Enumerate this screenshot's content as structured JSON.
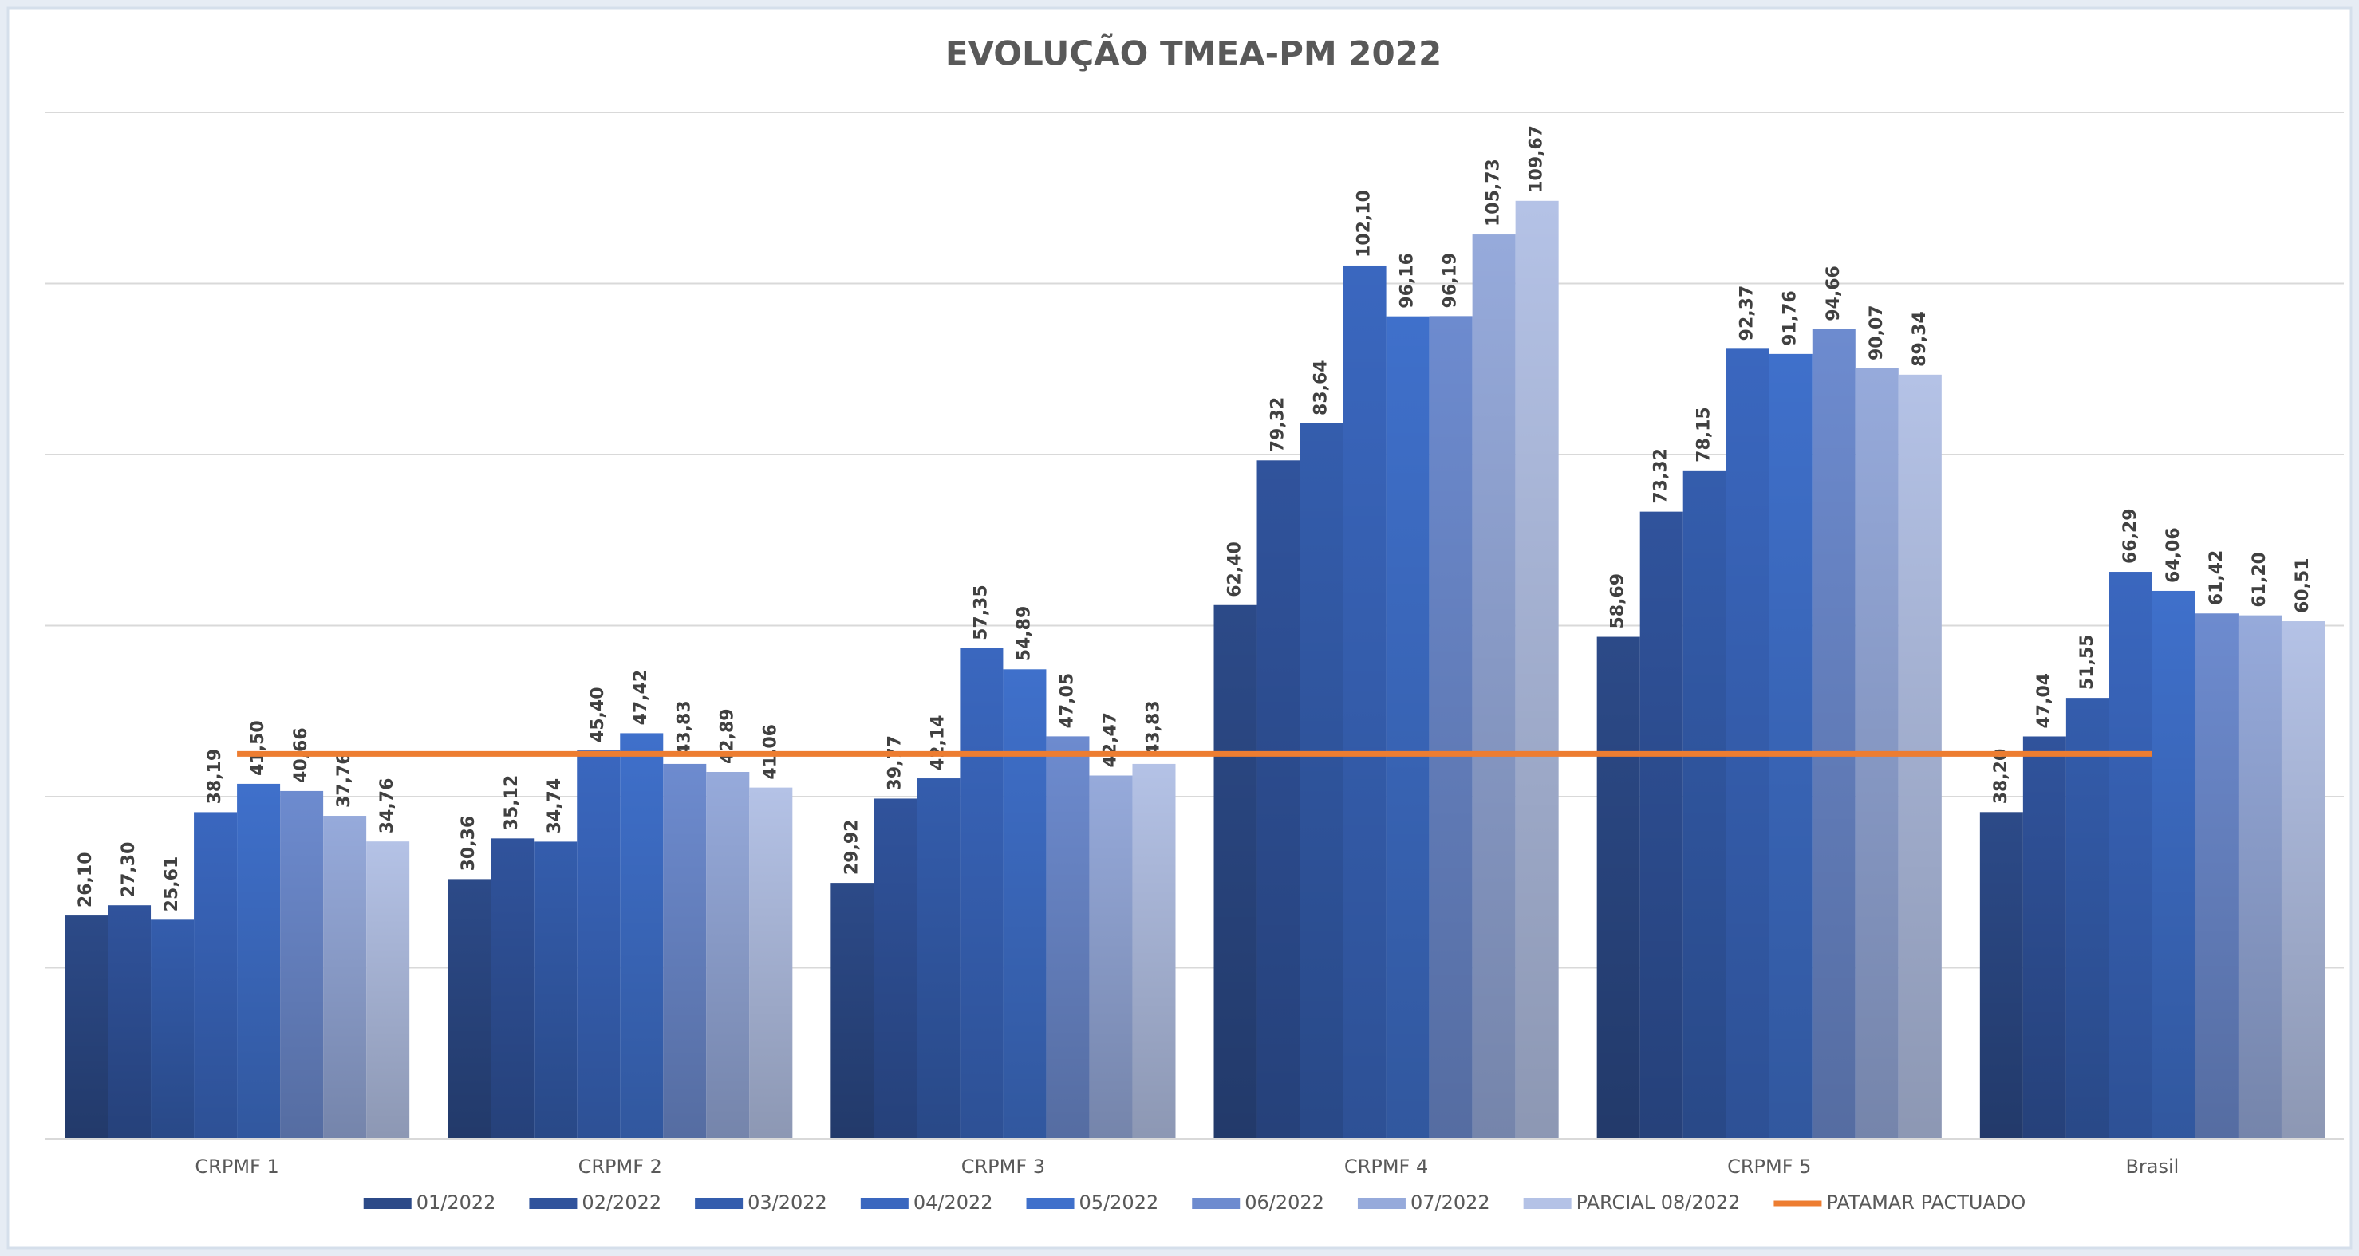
{
  "chart_data": {
    "type": "bar",
    "title": "EVOLUÇÃO TMEA-PM 2022",
    "categories": [
      "CRPMF 1",
      "CRPMF 2",
      "CRPMF 3",
      "CRPMF 4",
      "CRPMF 5",
      "Brasil"
    ],
    "ylim": [
      0,
      120
    ],
    "yticks": [
      0,
      20,
      40,
      60,
      80,
      100,
      120
    ],
    "grid": true,
    "legend": "bottom",
    "series": [
      {
        "name": "01/2022",
        "color": "#2c4a88",
        "values": [
          26.1,
          30.36,
          29.92,
          62.4,
          58.69,
          38.2
        ],
        "value_labels": [
          "26,10",
          "30,36",
          "29,92",
          "62,40",
          "58,69",
          "38,20"
        ]
      },
      {
        "name": "02/2022",
        "color": "#30539c",
        "values": [
          27.3,
          35.12,
          39.77,
          79.32,
          73.32,
          47.04
        ],
        "value_labels": [
          "27,30",
          "35,12",
          "39,77",
          "79,32",
          "73,32",
          "47,04"
        ]
      },
      {
        "name": "03/2022",
        "color": "#345dad",
        "values": [
          25.61,
          34.74,
          42.14,
          83.64,
          78.15,
          51.55
        ],
        "value_labels": [
          "25,61",
          "34,74",
          "42,14",
          "83,64",
          "78,15",
          "51,55"
        ]
      },
      {
        "name": "04/2022",
        "color": "#3a67bf",
        "values": [
          38.19,
          45.4,
          57.35,
          102.1,
          92.37,
          66.29
        ],
        "value_labels": [
          "38,19",
          "45,40",
          "57,35",
          "102,10",
          "92,37",
          "66,29"
        ]
      },
      {
        "name": "05/2022",
        "color": "#3f70cb",
        "values": [
          41.5,
          47.42,
          54.89,
          96.16,
          91.76,
          64.06
        ],
        "value_labels": [
          "41,50",
          "47,42",
          "54,89",
          "96,16",
          "91,76",
          "64,06"
        ]
      },
      {
        "name": "06/2022",
        "color": "#6d8bcf",
        "values": [
          40.66,
          43.83,
          47.05,
          96.19,
          94.66,
          61.42
        ],
        "value_labels": [
          "40,66",
          "43,83",
          "47,05",
          "96,19",
          "94,66",
          "61,42"
        ]
      },
      {
        "name": "07/2022",
        "color": "#96aadb",
        "values": [
          37.76,
          42.89,
          42.47,
          105.73,
          90.07,
          61.2
        ],
        "value_labels": [
          "37,76",
          "42,89",
          "42,47",
          "105,73",
          "90,07",
          "61,20"
        ]
      },
      {
        "name": "PARCIAL 08/2022",
        "color": "#b4c2e6",
        "values": [
          34.76,
          41.06,
          43.83,
          109.67,
          89.34,
          60.51
        ],
        "value_labels": [
          "34,76",
          "41,06",
          "43,83",
          "109,67",
          "89,34",
          "60,51"
        ]
      },
      {
        "name": "PATAMAR PACTUADO",
        "type": "line",
        "color": "#ed7d31",
        "values": [
          45,
          45,
          45,
          45,
          45,
          45
        ]
      }
    ]
  }
}
